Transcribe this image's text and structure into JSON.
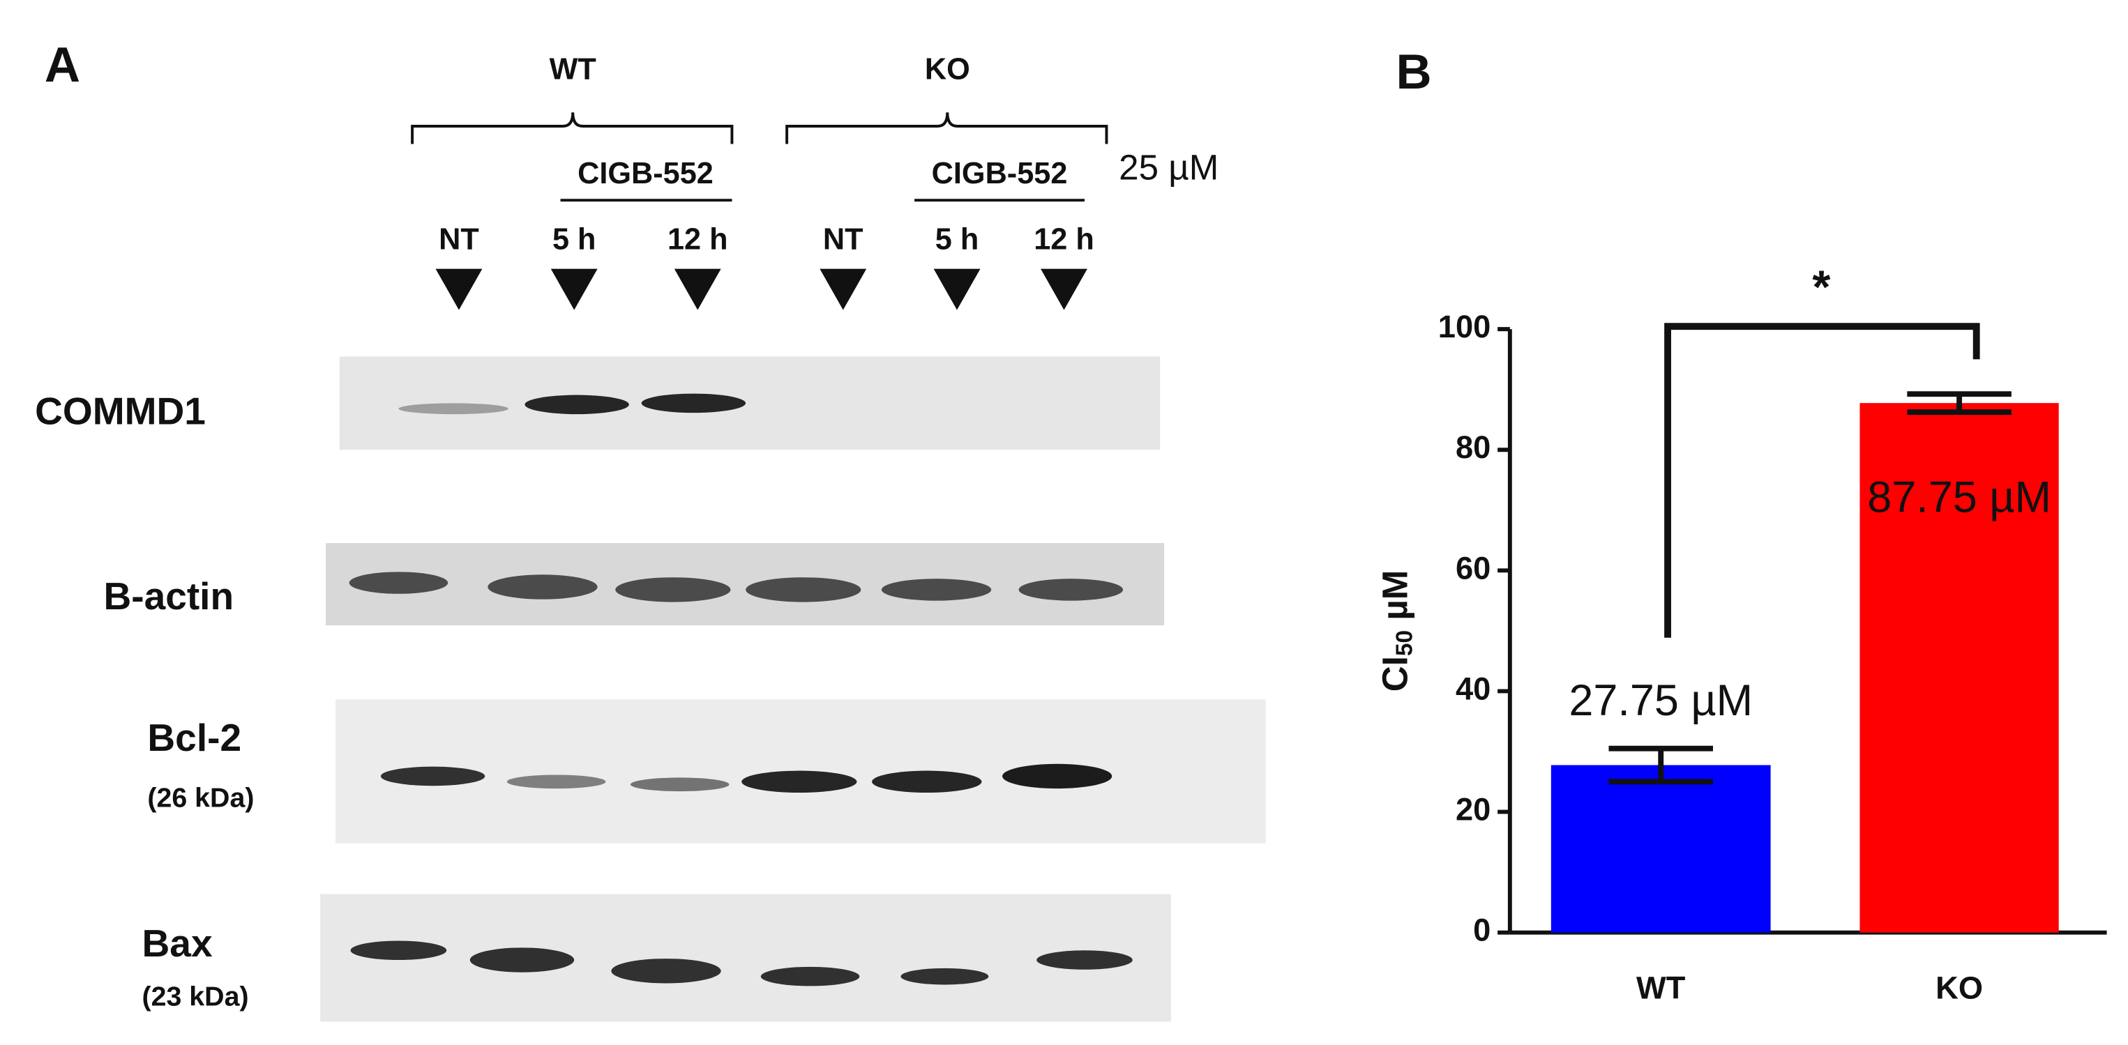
{
  "panel_labels": [
    "A",
    "B"
  ],
  "blot": {
    "groups": [
      "WT",
      "KO"
    ],
    "treatment": [
      "CIGB-552",
      "CIGB-552"
    ],
    "dose": "25 µM",
    "lanes": [
      "NT",
      "5 h",
      "12 h",
      "NT",
      "5 h",
      "12 h"
    ],
    "rows": [
      {
        "label": "COMMD1"
      },
      {
        "label": "B-actin"
      },
      {
        "label": "Bcl-2",
        "size": "(26 kDa)"
      },
      {
        "label": "Bax",
        "size": "(23 kDa)"
      }
    ]
  },
  "chart_data": {
    "type": "bar",
    "categories": [
      "WT",
      "KO"
    ],
    "values": [
      27.75,
      87.75
    ],
    "value_labels": [
      "27.75 µM",
      "87.75 µM"
    ],
    "errors": [
      2.75,
      1.5
    ],
    "colors": [
      "#0000ff",
      "#ff0000"
    ],
    "ylabel": "CI",
    "ylabel_subscript": "50",
    "ylabel_unit": " µM",
    "ylim": [
      0,
      100
    ],
    "yticks": [
      0,
      20,
      40,
      60,
      80,
      100
    ],
    "significance": "*"
  }
}
